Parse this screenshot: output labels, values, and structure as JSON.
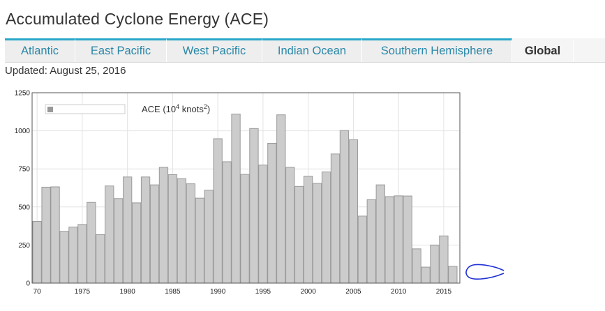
{
  "page": {
    "title": "Accumulated Cyclone Energy (ACE)",
    "updated": "Updated: August 25, 2016"
  },
  "tabs": [
    {
      "label": "Atlantic",
      "active": false
    },
    {
      "label": "East Pacific",
      "active": false
    },
    {
      "label": "West Pacific",
      "active": false
    },
    {
      "label": "Indian Ocean",
      "active": false
    },
    {
      "label": "Southern Hemisphere",
      "active": false
    },
    {
      "label": "Global",
      "active": true
    }
  ],
  "colors": {
    "tab_accent": "#2aa7c9",
    "tab_text": "#2a87a8",
    "bar_fill": "#cccccc",
    "bar_stroke": "#999999",
    "annotation": "#1f2fd6"
  },
  "chart_data": {
    "type": "bar",
    "legend": {
      "label": "ACE (10",
      "sup1": "4",
      "label_mid": " knots",
      "sup2": "2",
      "label_end": ")",
      "placement": "top-left"
    },
    "x_tick_labels": [
      "70",
      "1975",
      "1980",
      "1985",
      "1990",
      "1995",
      "2000",
      "2005",
      "2010",
      "2015"
    ],
    "x_tick_years": [
      1970,
      1975,
      1980,
      1985,
      1990,
      1995,
      2000,
      2005,
      2010,
      2015
    ],
    "y_tick_labels": [
      "0",
      "250",
      "500",
      "750",
      "1000",
      "1250"
    ],
    "ylim": [
      0,
      1250
    ],
    "grid": true,
    "categories": [
      1970,
      1971,
      1972,
      1973,
      1974,
      1975,
      1976,
      1977,
      1978,
      1979,
      1980,
      1981,
      1982,
      1983,
      1984,
      1985,
      1986,
      1987,
      1988,
      1989,
      1990,
      1991,
      1992,
      1993,
      1994,
      1995,
      1996,
      1997,
      1998,
      1999,
      2000,
      2001,
      2002,
      2003,
      2004,
      2005,
      2006,
      2007,
      2008,
      2009,
      2010,
      2011,
      2012,
      2013,
      2014,
      2015,
      2016
    ],
    "values": [
      405,
      630,
      632,
      340,
      368,
      385,
      530,
      318,
      638,
      555,
      697,
      527,
      697,
      645,
      760,
      712,
      686,
      652,
      558,
      610,
      948,
      797,
      1110,
      714,
      1015,
      775,
      918,
      1105,
      760,
      635,
      702,
      655,
      730,
      848,
      1002,
      942,
      440,
      548,
      645,
      568,
      573,
      572,
      225,
      105,
      250,
      310,
      110
    ]
  },
  "annotation": {
    "type": "hand-drawn arrow",
    "points_to": 2016
  }
}
